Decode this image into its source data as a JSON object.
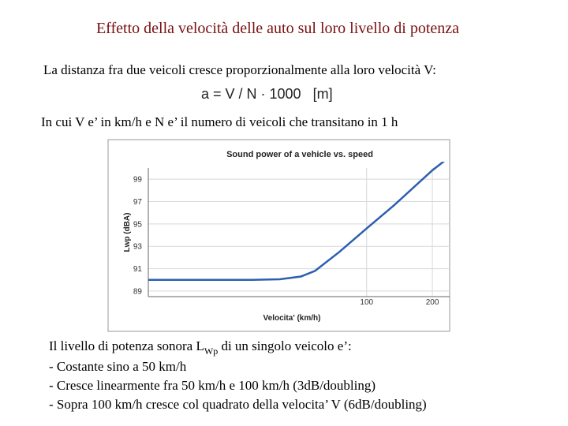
{
  "header": {
    "title": "Effetto della velocità delle auto sul loro livello di potenza"
  },
  "intro": "La distanza fra due veicoli cresce proporzionalmente alla loro velocità V:",
  "formula": "a = V / N · 1000   [m]",
  "explanation": "In cui V e’ in km/h e N e’ il numero di veicoli che transitano in 1 h",
  "chart_data": {
    "type": "line",
    "title": "Sound power of a vehicle vs. speed",
    "x_label": "Velocita' (km/h)",
    "y_label": "Lwp (dBA)",
    "x": [
      10,
      20,
      30,
      40,
      50,
      58,
      75,
      100,
      134,
      200,
      240
    ],
    "series": [
      {
        "name": "Lwp",
        "color": "#2b5fb0",
        "values": [
          90.0,
          90.0,
          90.0,
          90.05,
          90.3,
          90.8,
          92.5,
          94.6,
          96.7,
          99.8,
          101.0
        ]
      }
    ],
    "xlim": [
      10,
      240
    ],
    "ylim": [
      88.5,
      100
    ],
    "xscale": "log",
    "xticks": [
      100,
      200
    ],
    "yticks": [
      89,
      91,
      93,
      95,
      97,
      99
    ],
    "grid": true
  },
  "notes": {
    "lead": "Il livello di potenza sonora L",
    "lead_sub": "Wp",
    "lead_end": " di un singolo veicolo e’:",
    "items": [
      "- Costante sino a  50 km/h",
      "- Cresce linearmente fra 50 km/h e 100 km/h (3dB/doubling)",
      "- Sopra 100 km/h cresce col quadrato della velocita’ V (6dB/doubling)"
    ]
  }
}
